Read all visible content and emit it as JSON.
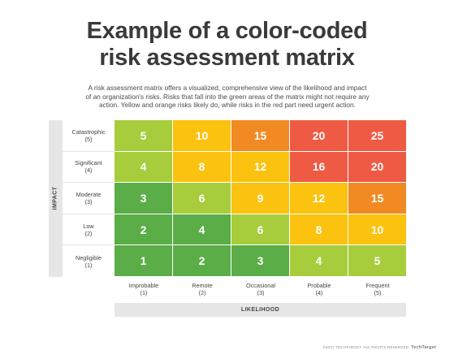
{
  "title_line1": "Example of a color-coded",
  "title_line2": "risk assessment matrix",
  "description": "A risk assessment matrix offers a visualized, comprehensive view of the likelihood and impact of an organization's risks. Risks that fall into the green areas of the matrix might not require any action. Yellow and orange risks likely do, while risks in the red part need urgent action.",
  "axes": {
    "impact_label": "IMPACT",
    "likelihood_label": "LIKELIHOOD"
  },
  "impact_levels": [
    {
      "name": "Catastrophic",
      "score": "(5)"
    },
    {
      "name": "Significant",
      "score": "(4)"
    },
    {
      "name": "Moderate",
      "score": "(3)"
    },
    {
      "name": "Low",
      "score": "(2)"
    },
    {
      "name": "Negligible",
      "score": "(1)"
    }
  ],
  "likelihood_levels": [
    {
      "name": "Improbable",
      "score": "(1)"
    },
    {
      "name": "Remote",
      "score": "(2)"
    },
    {
      "name": "Occasional",
      "score": "(3)"
    },
    {
      "name": "Probable",
      "score": "(4)"
    },
    {
      "name": "Frequent",
      "score": "(5)"
    }
  ],
  "matrix": [
    [
      "5",
      "10",
      "15",
      "20",
      "25"
    ],
    [
      "4",
      "8",
      "12",
      "16",
      "20"
    ],
    [
      "3",
      "6",
      "9",
      "12",
      "15"
    ],
    [
      "2",
      "4",
      "6",
      "8",
      "10"
    ],
    [
      "1",
      "2",
      "3",
      "4",
      "5"
    ]
  ],
  "colors": {
    "dark_green": "#5aad47",
    "light_green": "#a7cd3c",
    "yellow": "#fbc20f",
    "orange": "#f18a23",
    "red": "#ee5a43"
  },
  "matrix_colors": [
    [
      "light_green",
      "yellow",
      "orange",
      "red",
      "red"
    ],
    [
      "light_green",
      "yellow",
      "yellow",
      "red",
      "red"
    ],
    [
      "dark_green",
      "light_green",
      "yellow",
      "yellow",
      "orange"
    ],
    [
      "dark_green",
      "dark_green",
      "light_green",
      "yellow",
      "yellow"
    ],
    [
      "dark_green",
      "dark_green",
      "dark_green",
      "light_green",
      "light_green"
    ]
  ],
  "footer": {
    "copyright": "©2021 TECHTARGET. ALL RIGHTS RESERVED",
    "brand": "TechTarget"
  }
}
